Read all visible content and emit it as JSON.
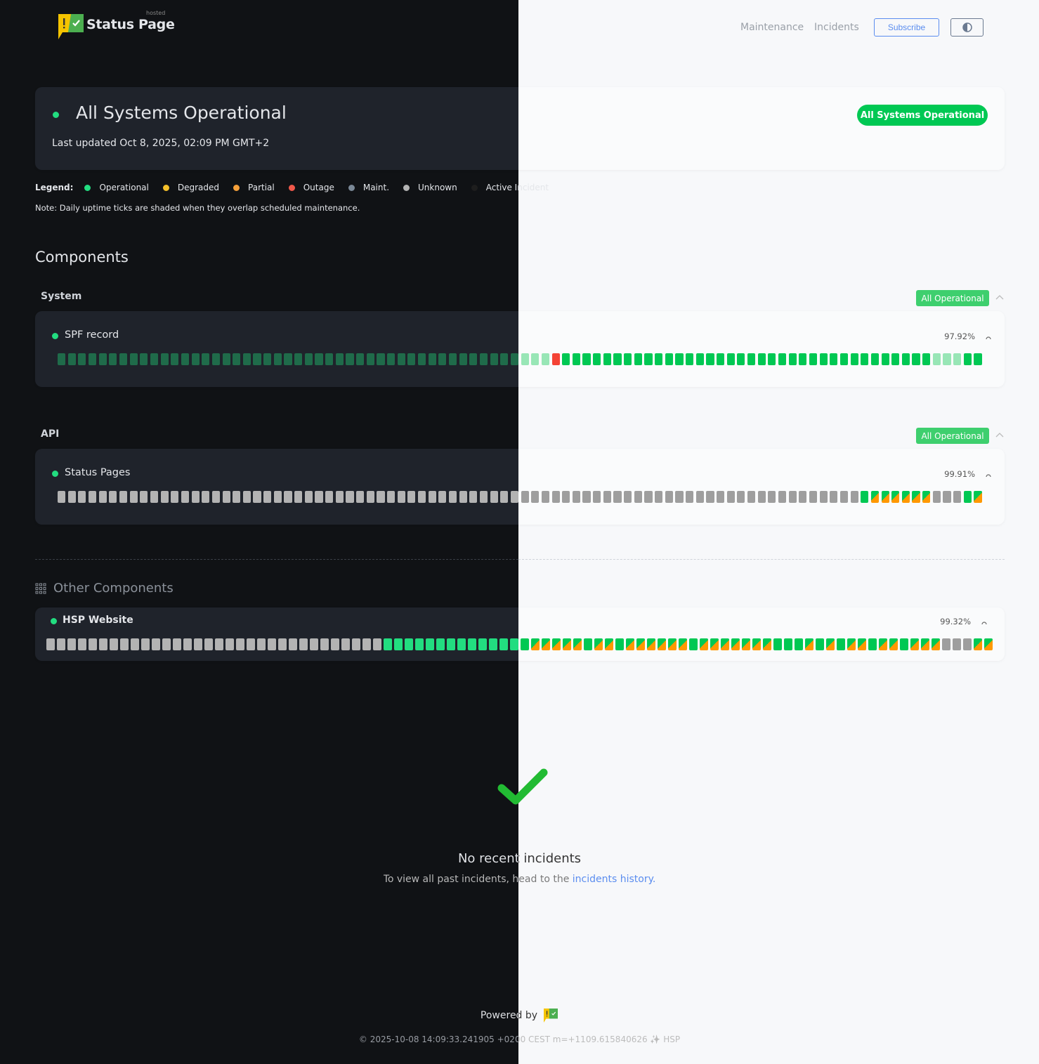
{
  "header": {
    "brand": "Status Page",
    "brand_tag": "hosted",
    "nav": [
      "Maintenance",
      "Incidents"
    ],
    "subscribe_label": "Subscribe",
    "theme_toggle_icon": "half-circle-contrast-icon"
  },
  "hero": {
    "title": "All Systems Operational",
    "last_updated": "Last updated Oct 8, 2025, 02:09 PM GMT+2",
    "badge": "All Systems Operational"
  },
  "legend": {
    "label": "Legend:",
    "items": [
      {
        "label": "Operational",
        "color": "#22dd80"
      },
      {
        "label": "Degraded",
        "color": "#f5c02a"
      },
      {
        "label": "Partial",
        "color": "#f5a03a"
      },
      {
        "label": "Outage",
        "color": "#f0584a"
      },
      {
        "label": "Maint.",
        "color": "#7a8896"
      },
      {
        "label": "Unknown",
        "color": "#b3b3b3"
      },
      {
        "label": "Active Incident",
        "color": "#1e1e1e"
      }
    ],
    "note": "Note: Daily uptime ticks are shaded when they overlap scheduled maintenance."
  },
  "components_title": "Components",
  "groups": [
    {
      "name": "System",
      "badge": "All Operational",
      "components": [
        {
          "name": "SPF record",
          "uptime": "97.92%",
          "ticks": [
            {
              "s": "op_shaded",
              "n": 48
            },
            {
              "s": "outage",
              "n": 1
            },
            {
              "s": "op",
              "n": 36
            },
            {
              "s": "op_shaded",
              "n": 3
            },
            {
              "s": "op",
              "n": 2
            }
          ]
        }
      ]
    },
    {
      "name": "API",
      "badge": "All Operational",
      "components": [
        {
          "name": "Status Pages",
          "uptime": "99.91%",
          "ticks": [
            {
              "s": "unknown",
              "n": 78
            },
            {
              "s": "op",
              "n": 1
            },
            {
              "s": "partial",
              "n": 6
            },
            {
              "s": "unknown",
              "n": 3
            },
            {
              "s": "op",
              "n": 1
            },
            {
              "s": "partial",
              "n": 1
            }
          ]
        }
      ]
    }
  ],
  "other": {
    "title": "Other Components",
    "components": [
      {
        "name": "HSP Website",
        "uptime": "99.32%",
        "ticks": [
          {
            "s": "unknown",
            "n": 32
          },
          {
            "s": "op",
            "n": 14
          },
          {
            "s": "partial",
            "n": 5
          },
          {
            "s": "op",
            "n": 1
          },
          {
            "s": "partial",
            "n": 2
          },
          {
            "s": "op",
            "n": 1
          },
          {
            "s": "partial",
            "n": 6
          },
          {
            "s": "op",
            "n": 1
          },
          {
            "s": "partial",
            "n": 7
          },
          {
            "s": "op",
            "n": 3
          },
          {
            "s": "partial",
            "n": 1
          },
          {
            "s": "op",
            "n": 1
          },
          {
            "s": "partial",
            "n": 1
          },
          {
            "s": "op",
            "n": 1
          },
          {
            "s": "partial",
            "n": 2
          },
          {
            "s": "op",
            "n": 1
          },
          {
            "s": "partial",
            "n": 2
          },
          {
            "s": "op",
            "n": 1
          },
          {
            "s": "partial",
            "n": 3
          },
          {
            "s": "unknown",
            "n": 3
          },
          {
            "s": "partial",
            "n": 2
          }
        ]
      }
    ]
  },
  "incidents": {
    "title": "No recent incidents",
    "sub_prefix": "To view all past incidents, head to the ",
    "link": "incidents history",
    "sub_suffix": "."
  },
  "footer": {
    "powered_by": "Powered by",
    "copyright": "© 2025-10-08 14:09:33.241905 +0200 CEST m=+1109.615840626 ✨ HSP"
  },
  "colors": {
    "accent": "#5b8def",
    "operational": "#00c853",
    "outage": "#f44336",
    "partial": "#ff9800",
    "unknown": "#9e9e9e"
  }
}
